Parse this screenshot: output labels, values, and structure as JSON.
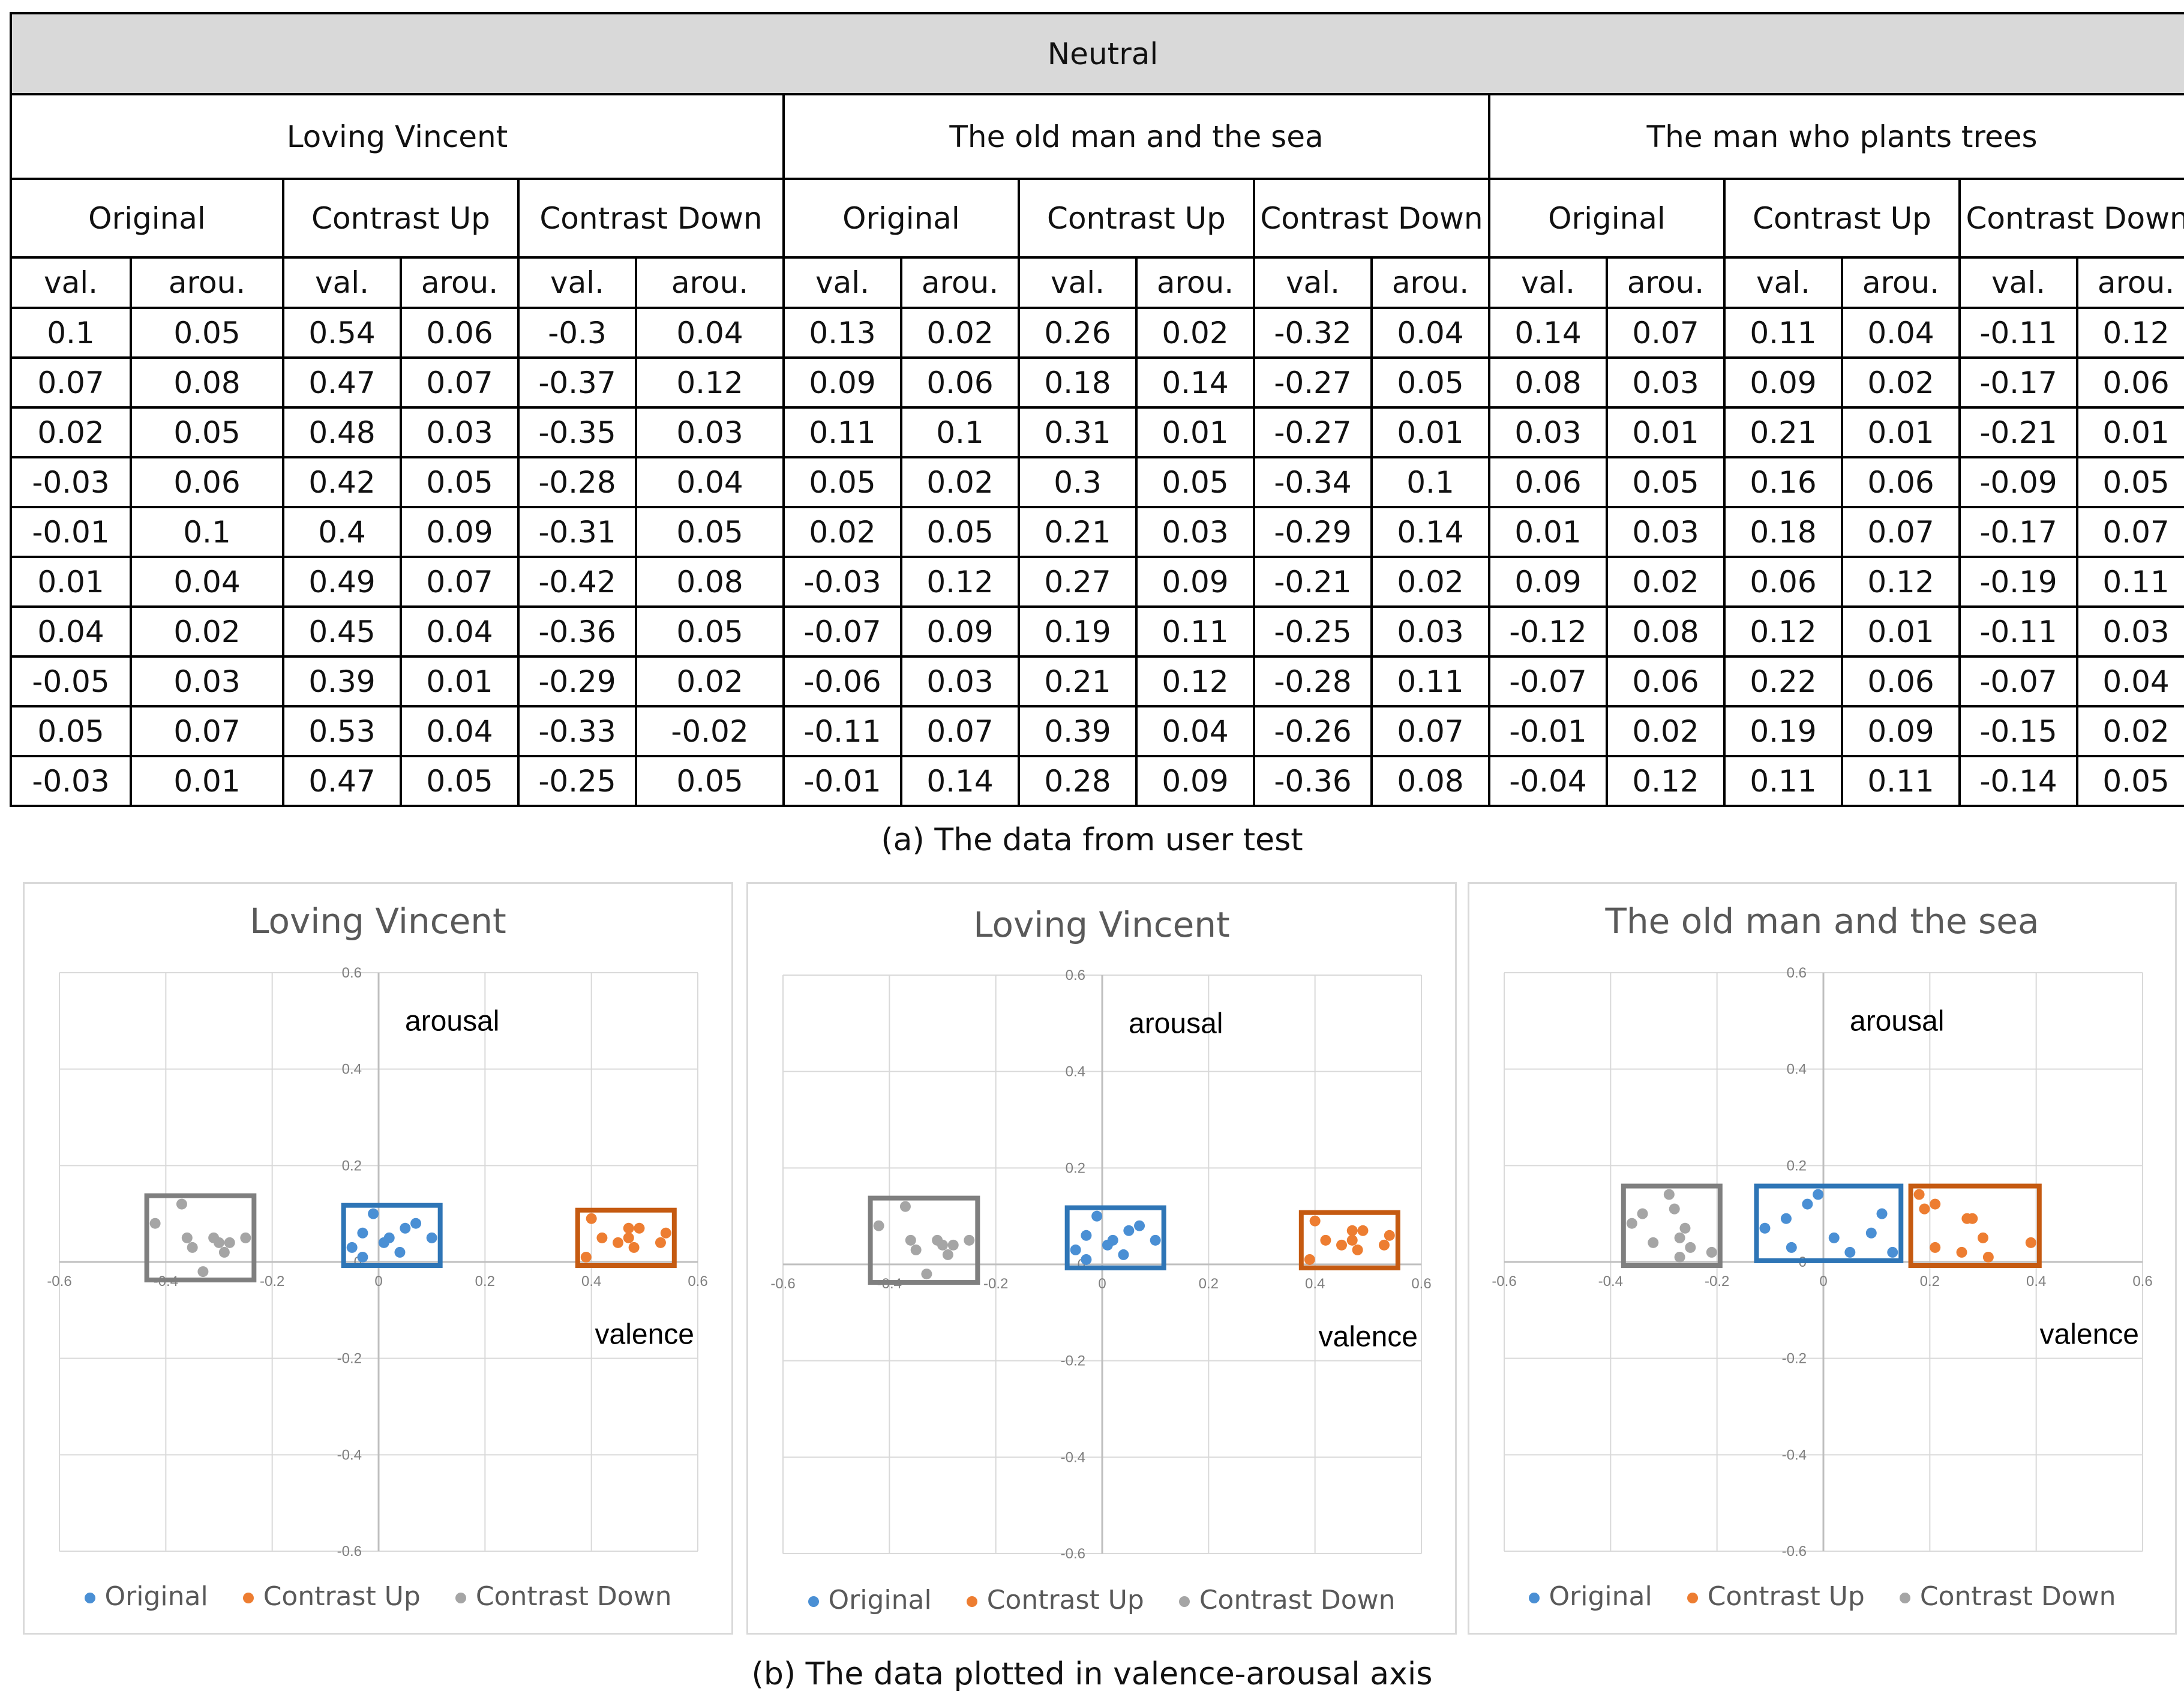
{
  "table": {
    "title": "Neutral",
    "movies": [
      "Loving Vincent",
      "The old man and the sea",
      "The man who plants trees"
    ],
    "conditions": [
      "Original",
      "Contrast Up",
      "Contrast Down"
    ],
    "sub_headers": [
      "val.",
      "arou."
    ],
    "rows": [
      [
        "0.1",
        "0.05",
        "0.54",
        "0.06",
        "-0.3",
        "0.04",
        "0.13",
        "0.02",
        "0.26",
        "0.02",
        "-0.32",
        "0.04",
        "0.14",
        "0.07",
        "0.11",
        "0.04",
        "-0.11",
        "0.12"
      ],
      [
        "0.07",
        "0.08",
        "0.47",
        "0.07",
        "-0.37",
        "0.12",
        "0.09",
        "0.06",
        "0.18",
        "0.14",
        "-0.27",
        "0.05",
        "0.08",
        "0.03",
        "0.09",
        "0.02",
        "-0.17",
        "0.06"
      ],
      [
        "0.02",
        "0.05",
        "0.48",
        "0.03",
        "-0.35",
        "0.03",
        "0.11",
        "0.1",
        "0.31",
        "0.01",
        "-0.27",
        "0.01",
        "0.03",
        "0.01",
        "0.21",
        "0.01",
        "-0.21",
        "0.01"
      ],
      [
        "-0.03",
        "0.06",
        "0.42",
        "0.05",
        "-0.28",
        "0.04",
        "0.05",
        "0.02",
        "0.3",
        "0.05",
        "-0.34",
        "0.1",
        "0.06",
        "0.05",
        "0.16",
        "0.06",
        "-0.09",
        "0.05"
      ],
      [
        "-0.01",
        "0.1",
        "0.4",
        "0.09",
        "-0.31",
        "0.05",
        "0.02",
        "0.05",
        "0.21",
        "0.03",
        "-0.29",
        "0.14",
        "0.01",
        "0.03",
        "0.18",
        "0.07",
        "-0.17",
        "0.07"
      ],
      [
        "0.01",
        "0.04",
        "0.49",
        "0.07",
        "-0.42",
        "0.08",
        "-0.03",
        "0.12",
        "0.27",
        "0.09",
        "-0.21",
        "0.02",
        "0.09",
        "0.02",
        "0.06",
        "0.12",
        "-0.19",
        "0.11"
      ],
      [
        "0.04",
        "0.02",
        "0.45",
        "0.04",
        "-0.36",
        "0.05",
        "-0.07",
        "0.09",
        "0.19",
        "0.11",
        "-0.25",
        "0.03",
        "-0.12",
        "0.08",
        "0.12",
        "0.01",
        "-0.11",
        "0.03"
      ],
      [
        "-0.05",
        "0.03",
        "0.39",
        "0.01",
        "-0.29",
        "0.02",
        "-0.06",
        "0.03",
        "0.21",
        "0.12",
        "-0.28",
        "0.11",
        "-0.07",
        "0.06",
        "0.22",
        "0.06",
        "-0.07",
        "0.04"
      ],
      [
        "0.05",
        "0.07",
        "0.53",
        "0.04",
        "-0.33",
        "-0.02",
        "-0.11",
        "0.07",
        "0.39",
        "0.04",
        "-0.26",
        "0.07",
        "-0.01",
        "0.02",
        "0.19",
        "0.09",
        "-0.15",
        "0.02"
      ],
      [
        "-0.03",
        "0.01",
        "0.47",
        "0.05",
        "-0.25",
        "0.05",
        "-0.01",
        "0.14",
        "0.28",
        "0.09",
        "-0.36",
        "0.08",
        "-0.04",
        "0.12",
        "0.11",
        "0.11",
        "-0.14",
        "0.05"
      ]
    ]
  },
  "captions": {
    "a": "(a) The data from user test",
    "b": "(b) The data plotted in valence-arousal axis"
  },
  "colors": {
    "original": "#4a8fd4",
    "contrast_up": "#ed7d31",
    "contrast_down": "#a5a5a5",
    "box_original": "#2e75b6",
    "box_up": "#c55a11",
    "box_down": "#7f7f7f"
  },
  "chart_data": [
    {
      "type": "scatter",
      "title": "Loving Vincent",
      "xlabel": "valence",
      "ylabel": "arousal",
      "xlim": [
        -0.6,
        0.6
      ],
      "ylim": [
        -0.6,
        0.6
      ],
      "xticks": [
        "-0.6",
        "-0.4",
        "-0.2",
        "0",
        "0.2",
        "0.4",
        "0.6"
      ],
      "yticks": [
        "0.6",
        "0.4",
        "0.2",
        "0",
        "-0.2",
        "-0.4",
        "-0.6"
      ],
      "grid": true,
      "legend": "bottom",
      "series": [
        {
          "name": "Original",
          "x": [
            0.1,
            0.07,
            0.02,
            -0.03,
            -0.01,
            0.01,
            0.04,
            -0.05,
            0.05,
            -0.03
          ],
          "y": [
            0.05,
            0.08,
            0.05,
            0.06,
            0.1,
            0.04,
            0.02,
            0.03,
            0.07,
            0.01
          ]
        },
        {
          "name": "Contrast Up",
          "x": [
            0.54,
            0.47,
            0.48,
            0.42,
            0.4,
            0.49,
            0.45,
            0.39,
            0.53,
            0.47
          ],
          "y": [
            0.06,
            0.07,
            0.03,
            0.05,
            0.09,
            0.07,
            0.04,
            0.01,
            0.04,
            0.05
          ]
        },
        {
          "name": "Contrast Down",
          "x": [
            -0.3,
            -0.37,
            -0.35,
            -0.28,
            -0.31,
            -0.42,
            -0.36,
            -0.29,
            -0.33,
            -0.25
          ],
          "y": [
            0.04,
            0.12,
            0.03,
            0.04,
            0.05,
            0.08,
            0.05,
            0.02,
            -0.02,
            0.05
          ]
        }
      ]
    },
    {
      "type": "scatter",
      "title": "Loving Vincent",
      "xlabel": "valence",
      "ylabel": "arousal",
      "xlim": [
        -0.6,
        0.6
      ],
      "ylim": [
        -0.6,
        0.6
      ],
      "xticks": [
        "-0.6",
        "-0.4",
        "-0.2",
        "0",
        "0.2",
        "0.4",
        "0.6"
      ],
      "yticks": [
        "0.6",
        "0.4",
        "0.2",
        "0",
        "-0.2",
        "-0.4",
        "-0.6"
      ],
      "grid": true,
      "legend": "bottom",
      "series": [
        {
          "name": "Original",
          "x": [
            0.1,
            0.07,
            0.02,
            -0.03,
            -0.01,
            0.01,
            0.04,
            -0.05,
            0.05,
            -0.03
          ],
          "y": [
            0.05,
            0.08,
            0.05,
            0.06,
            0.1,
            0.04,
            0.02,
            0.03,
            0.07,
            0.01
          ]
        },
        {
          "name": "Contrast Up",
          "x": [
            0.54,
            0.47,
            0.48,
            0.42,
            0.4,
            0.49,
            0.45,
            0.39,
            0.53,
            0.47
          ],
          "y": [
            0.06,
            0.07,
            0.03,
            0.05,
            0.09,
            0.07,
            0.04,
            0.01,
            0.04,
            0.05
          ]
        },
        {
          "name": "Contrast Down",
          "x": [
            -0.3,
            -0.37,
            -0.35,
            -0.28,
            -0.31,
            -0.42,
            -0.36,
            -0.29,
            -0.33,
            -0.25
          ],
          "y": [
            0.04,
            0.12,
            0.03,
            0.04,
            0.05,
            0.08,
            0.05,
            0.02,
            -0.02,
            0.05
          ]
        }
      ]
    },
    {
      "type": "scatter",
      "title": "The old man and  the sea",
      "xlabel": "valence",
      "ylabel": "arousal",
      "xlim": [
        -0.6,
        0.6
      ],
      "ylim": [
        -0.6,
        0.6
      ],
      "xticks": [
        "-0.6",
        "-0.4",
        "-0.2",
        "0",
        "0.2",
        "0.4",
        "0.6"
      ],
      "yticks": [
        "0.6",
        "0.4",
        "0.2",
        "0",
        "-0.2",
        "-0.4",
        "-0.6"
      ],
      "grid": true,
      "legend": "bottom",
      "series": [
        {
          "name": "Original",
          "x": [
            0.13,
            0.09,
            0.11,
            0.05,
            0.02,
            -0.03,
            -0.07,
            -0.06,
            -0.11,
            -0.01
          ],
          "y": [
            0.02,
            0.06,
            0.1,
            0.02,
            0.05,
            0.12,
            0.09,
            0.03,
            0.07,
            0.14
          ]
        },
        {
          "name": "Contrast Up",
          "x": [
            0.26,
            0.18,
            0.31,
            0.3,
            0.21,
            0.27,
            0.19,
            0.21,
            0.39,
            0.28
          ],
          "y": [
            0.02,
            0.14,
            0.01,
            0.05,
            0.03,
            0.09,
            0.11,
            0.12,
            0.04,
            0.09
          ]
        },
        {
          "name": "Contrast Down",
          "x": [
            -0.32,
            -0.27,
            -0.27,
            -0.34,
            -0.29,
            -0.21,
            -0.25,
            -0.28,
            -0.26,
            -0.36
          ],
          "y": [
            0.04,
            0.05,
            0.01,
            0.1,
            0.14,
            0.02,
            0.03,
            0.11,
            0.07,
            0.08
          ]
        }
      ]
    }
  ]
}
